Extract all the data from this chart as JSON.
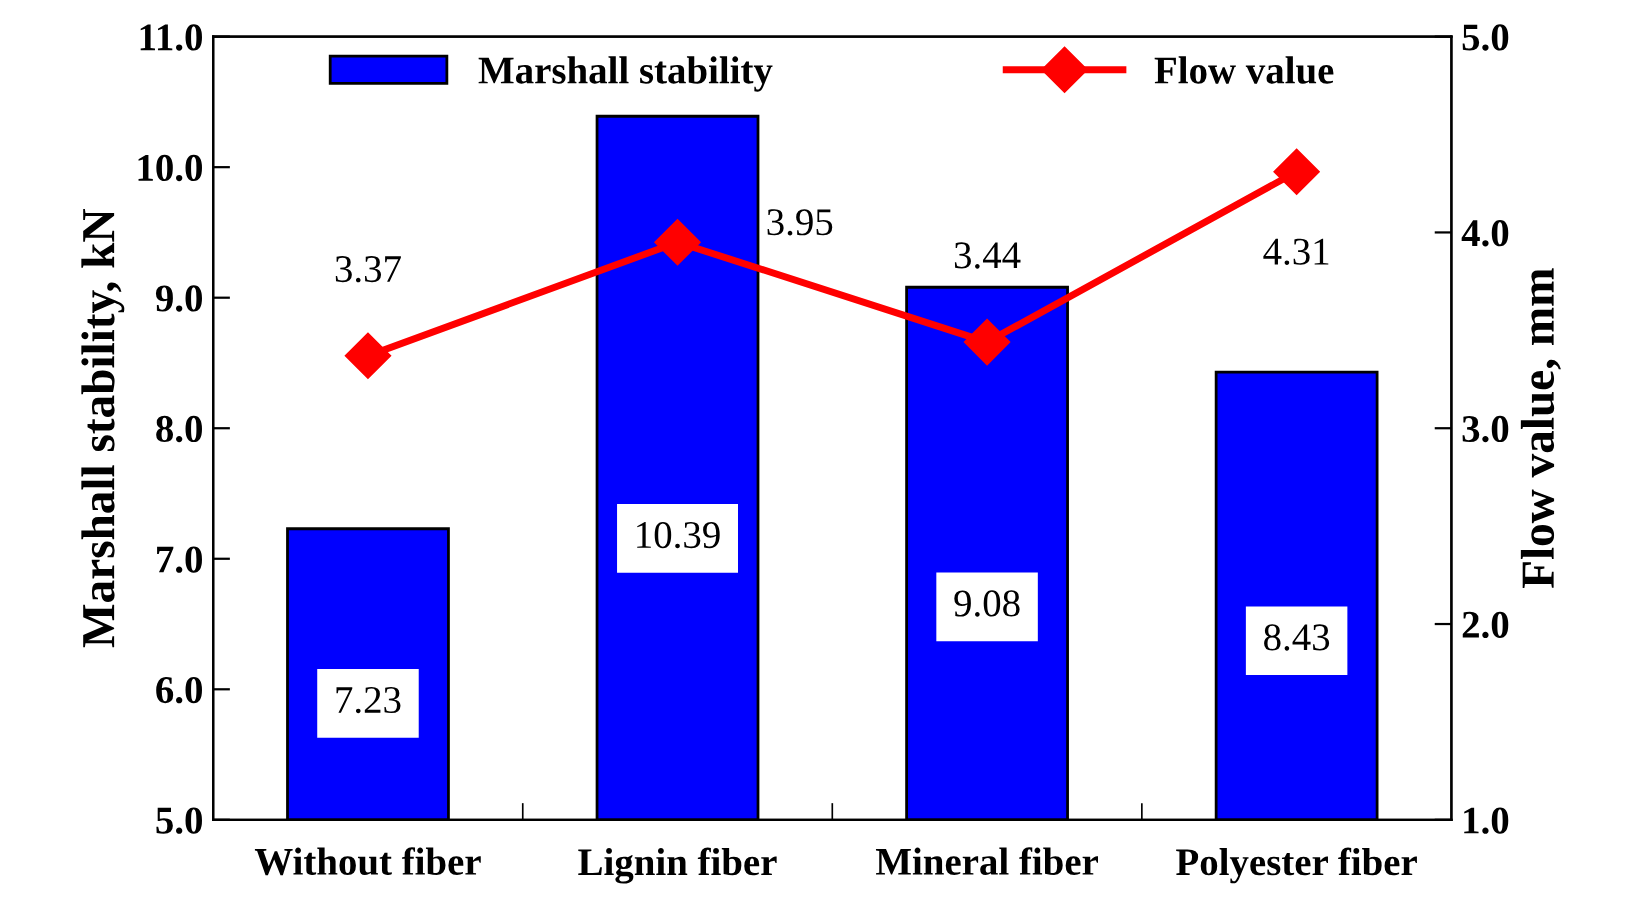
{
  "chart_data": {
    "type": "bar",
    "categories": [
      "Without fiber",
      "Lignin fiber",
      "Mineral fiber",
      "Polyester fiber"
    ],
    "ylabel": "Marshall stability, kN",
    "y2label": "Flow value, mm",
    "ylim": [
      5.0,
      11.0
    ],
    "yticks": [
      {
        "value": 5,
        "label": "5.0"
      },
      {
        "value": 6,
        "label": "6.0"
      },
      {
        "value": 7,
        "label": "7.0"
      },
      {
        "value": 8,
        "label": "8.0"
      },
      {
        "value": 9,
        "label": "9.0"
      },
      {
        "value": 10,
        "label": "10.0"
      },
      {
        "value": 11,
        "label": "11.0"
      }
    ],
    "y2lim": [
      1.0,
      5.0
    ],
    "y2ticks": [
      {
        "value": 1,
        "label": "1.0"
      },
      {
        "value": 2,
        "label": "2.0"
      },
      {
        "value": 3,
        "label": "3.0"
      },
      {
        "value": 4,
        "label": "4.0"
      },
      {
        "value": 5,
        "label": "5.0"
      }
    ],
    "series": [
      {
        "name": "Marshall stability",
        "color": "#0000ff",
        "values": [
          7.23,
          10.39,
          9.08,
          8.43
        ]
      },
      {
        "name": "Flow value",
        "type": "line",
        "axis": "y2",
        "color": "#ff0000",
        "marker": "diamond",
        "line_style": "solid",
        "values": [
          3.37,
          3.95,
          3.44,
          4.31
        ]
      }
    ],
    "data_labels": true,
    "grid": false,
    "legend": "top"
  }
}
